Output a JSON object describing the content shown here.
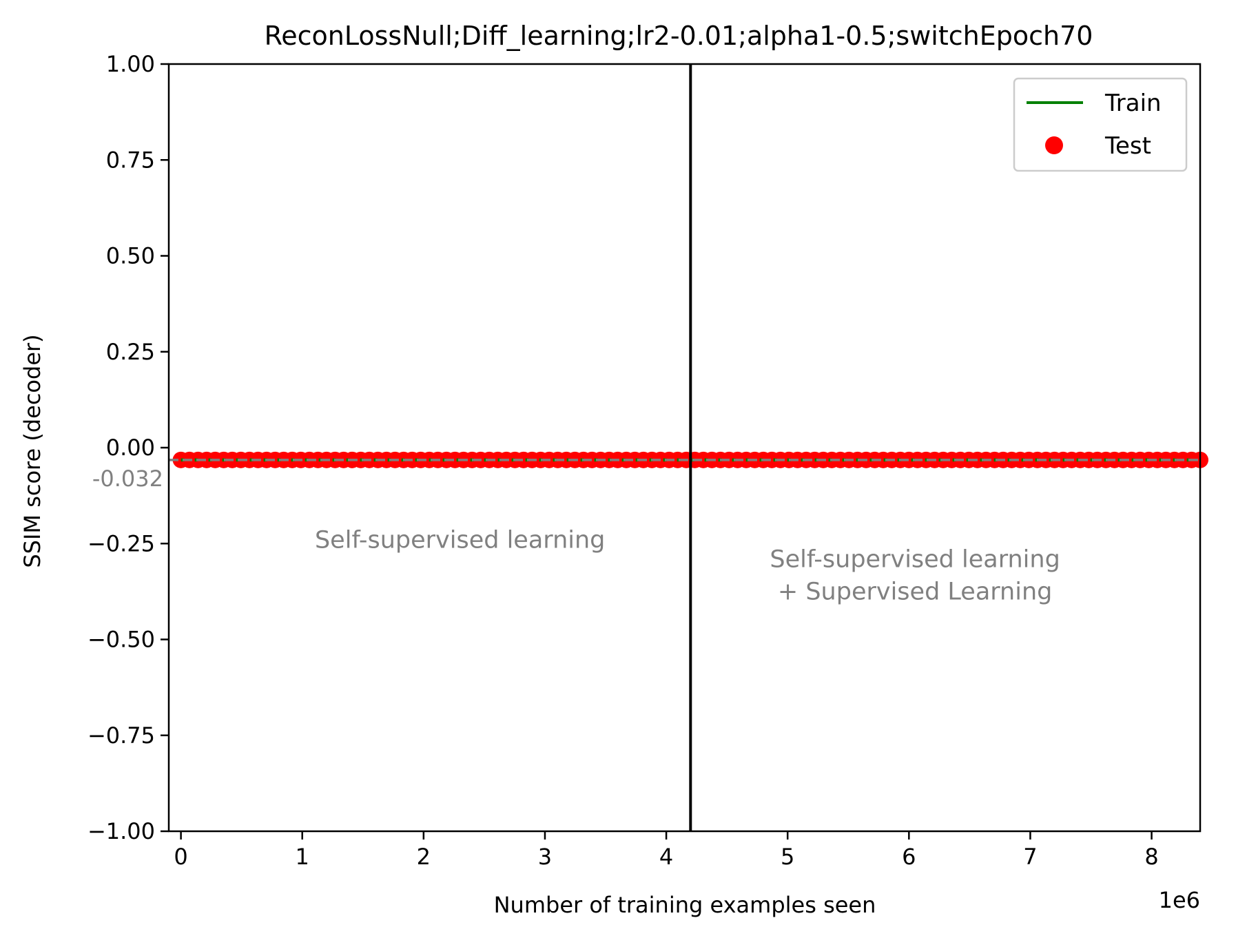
{
  "chart_data": {
    "type": "line",
    "title": "ReconLossNull;Diff_learning;lr2-0.01;alpha1-0.5;switchEpoch70",
    "xlabel": "Number of training examples seen",
    "ylabel": "SSIM score (decoder)",
    "x_offset_label": "1e6",
    "xlim": [
      -0.1,
      8.4
    ],
    "ylim": [
      -1.0,
      1.0
    ],
    "x_scale_factor": 1000000,
    "x_ticks": [
      0,
      1,
      2,
      3,
      4,
      5,
      6,
      7,
      8
    ],
    "x_tick_labels": [
      "0",
      "1",
      "2",
      "3",
      "4",
      "5",
      "6",
      "7",
      "8"
    ],
    "y_ticks": [
      1.0,
      0.75,
      0.5,
      0.25,
      0.0,
      -0.25,
      -0.5,
      -0.75,
      -1.0
    ],
    "y_tick_labels": [
      "1.00",
      "0.75",
      "0.50",
      "0.25",
      "0.00",
      "−0.25",
      "−0.50",
      "−0.75",
      "−1.00"
    ],
    "grid": false,
    "legend_placement": "top-right",
    "series": [
      {
        "name": "Train",
        "kind": "line",
        "color": "#008000",
        "style": "dotted",
        "x_range": [
          0,
          8.4
        ],
        "y_constant": -0.032
      },
      {
        "name": "Test",
        "kind": "scatter",
        "color": "#ff0000",
        "x_start": 0,
        "x_end": 8.4,
        "point_count": 120,
        "y_constant": -0.032
      }
    ],
    "reference_lines": [
      {
        "orientation": "horizontal",
        "y": -0.032,
        "color": "#808080",
        "style": "dashed",
        "label": "-0.032"
      },
      {
        "orientation": "vertical",
        "x": 4.2,
        "color": "#000000",
        "style": "solid"
      }
    ],
    "annotations": [
      {
        "lines": [
          "Self-supervised learning"
        ],
        "x": 2.3,
        "y": -0.24,
        "color": "#808080"
      },
      {
        "lines": [
          "Self-supervised learning",
          "+ Supervised Learning"
        ],
        "x": 6.05,
        "y": -0.29,
        "color": "#808080"
      }
    ]
  }
}
